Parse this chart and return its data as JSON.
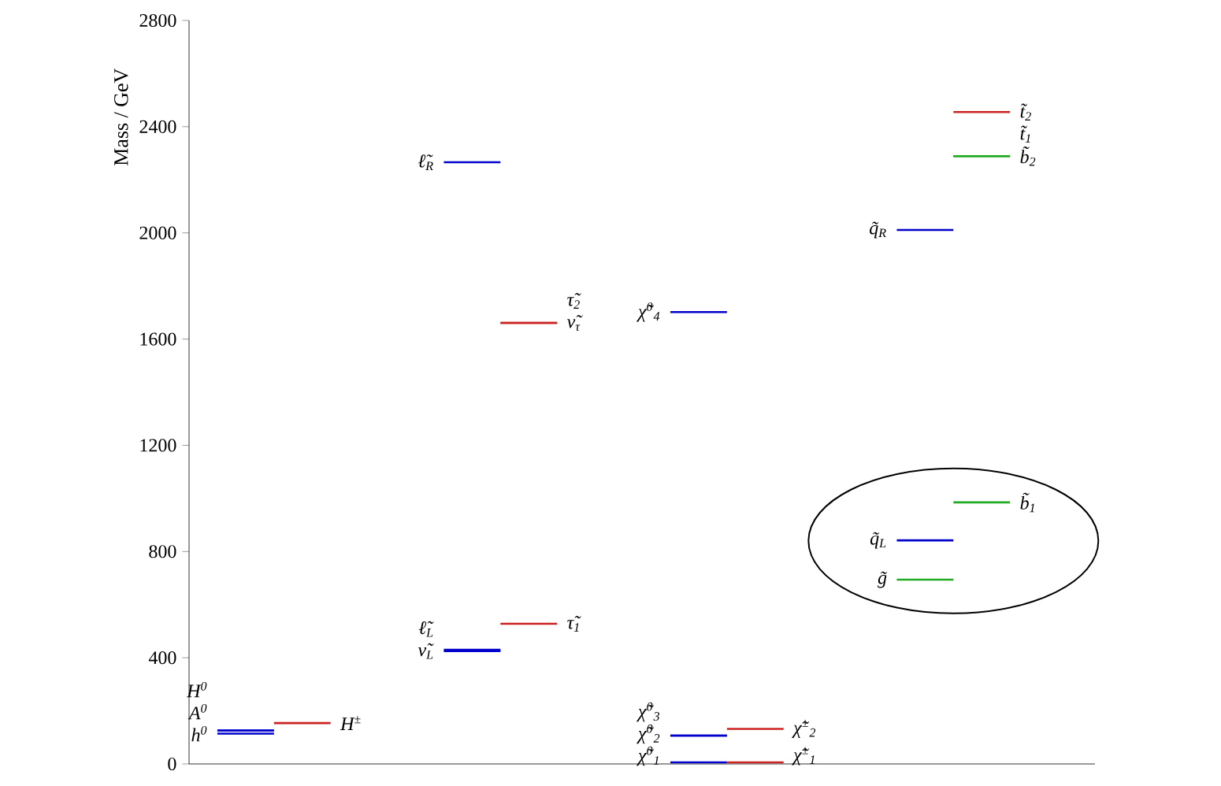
{
  "chart_data": {
    "type": "line",
    "ylabel": "Mass / GeV",
    "categories": [
      null,
      null,
      null,
      null,
      null,
      null,
      null,
      null,
      null,
      null,
      null,
      null,
      null,
      null,
      null,
      null
    ],
    "ylim": [
      0,
      2800
    ],
    "yticks": [
      0,
      400,
      800,
      1200,
      1600,
      2000,
      2400,
      2800
    ],
    "tick_labels": "y",
    "grid": false,
    "series": [
      {
        "name": "H$^{0}$",
        "color": "#0000cc",
        "values": [
          126,
          126,
          null,
          null,
          null,
          null,
          null,
          null,
          null,
          null,
          null,
          null,
          null,
          null,
          null,
          null
        ]
      },
      {
        "name": "A$^{0}$",
        "color": "#0000cc",
        "values": [
          126,
          126,
          null,
          null,
          null,
          null,
          null,
          null,
          null,
          null,
          null,
          null,
          null,
          null,
          null,
          null
        ]
      },
      {
        "name": "h$^{0}$",
        "color": "#0000cc",
        "values": [
          114,
          114,
          null,
          null,
          null,
          null,
          null,
          null,
          null,
          null,
          null,
          null,
          null,
          null,
          null,
          null
        ]
      },
      {
        "name": "H$^{±}$",
        "color": "#cc2222",
        "values": [
          null,
          154,
          154,
          null,
          null,
          null,
          null,
          null,
          null,
          null,
          null,
          null,
          null,
          null,
          null,
          null
        ]
      },
      {
        "name": "ℓ̃$_{R}$",
        "color": "#0000cc",
        "values": [
          null,
          null,
          null,
          null,
          2266,
          2266,
          null,
          null,
          null,
          null,
          null,
          null,
          null,
          null,
          null,
          null
        ]
      },
      {
        "name": "ℓ̃$_{L}$",
        "color": "#0000cc",
        "values": [
          null,
          null,
          null,
          null,
          430,
          430,
          null,
          null,
          null,
          null,
          null,
          null,
          null,
          null,
          null,
          null
        ]
      },
      {
        "name": "ν̃$_{L}$",
        "color": "#0000cc",
        "values": [
          null,
          null,
          null,
          null,
          425,
          425,
          null,
          null,
          null,
          null,
          null,
          null,
          null,
          null,
          null,
          null
        ]
      },
      {
        "name": "τ̃$_{2}$",
        "color": "#cc2222",
        "values": [
          null,
          null,
          null,
          null,
          null,
          1661,
          1661,
          null,
          null,
          null,
          null,
          null,
          null,
          null,
          null,
          null
        ]
      },
      {
        "name": "ν̃$_{τ}$",
        "color": "#cc2222",
        "values": [
          null,
          null,
          null,
          null,
          null,
          1661,
          1661,
          null,
          null,
          null,
          null,
          null,
          null,
          null,
          null,
          null
        ]
      },
      {
        "name": "τ̃$_{1}$",
        "color": "#cc2222",
        "values": [
          null,
          null,
          null,
          null,
          null,
          528,
          528,
          null,
          null,
          null,
          null,
          null,
          null,
          null,
          null,
          null
        ]
      },
      {
        "name": "χ̃$^{0}$$_{4}$",
        "color": "#0000cc",
        "values": [
          null,
          null,
          null,
          null,
          null,
          null,
          null,
          null,
          1702,
          1702,
          null,
          null,
          null,
          null,
          null,
          null
        ]
      },
      {
        "name": "χ̃$^{0}$$_{3}$",
        "color": "#0000cc",
        "values": [
          null,
          null,
          null,
          null,
          null,
          null,
          null,
          null,
          107,
          107,
          null,
          null,
          null,
          null,
          null,
          null
        ]
      },
      {
        "name": "χ̃$^{0}$$_{2}$",
        "color": "#0000cc",
        "values": [
          null,
          null,
          null,
          null,
          null,
          null,
          null,
          null,
          107,
          107,
          null,
          null,
          null,
          null,
          null,
          null
        ]
      },
      {
        "name": "χ̃$^{0}$$_{1}$",
        "color": "#0000cc",
        "values": [
          null,
          null,
          null,
          null,
          null,
          null,
          null,
          null,
          6,
          6,
          null,
          null,
          null,
          null,
          null,
          null
        ]
      },
      {
        "name": "χ̃$^{±}$$_{2}$",
        "color": "#cc2222",
        "values": [
          null,
          null,
          null,
          null,
          null,
          null,
          null,
          null,
          null,
          132,
          132,
          null,
          null,
          null,
          null,
          null
        ]
      },
      {
        "name": "χ̃$^{±}$$_{1}$",
        "color": "#cc2222",
        "values": [
          null,
          null,
          null,
          null,
          null,
          null,
          null,
          null,
          null,
          6,
          6,
          null,
          null,
          null,
          null,
          null
        ]
      },
      {
        "name": "q̃$_{R}$",
        "color": "#0000cc",
        "values": [
          null,
          null,
          null,
          null,
          null,
          null,
          null,
          null,
          null,
          null,
          null,
          null,
          2011,
          2011,
          null,
          null
        ]
      },
      {
        "name": "q̃$_{L}$",
        "color": "#0000cc",
        "values": [
          null,
          null,
          null,
          null,
          null,
          null,
          null,
          null,
          null,
          null,
          null,
          null,
          842,
          842,
          null,
          null
        ]
      },
      {
        "name": "g̃",
        "color": "#22aa22",
        "values": [
          null,
          null,
          null,
          null,
          null,
          null,
          null,
          null,
          null,
          null,
          null,
          null,
          694,
          694,
          null,
          null
        ]
      },
      {
        "name": "t̃$_{2}$",
        "color": "#cc2222",
        "values": [
          null,
          null,
          null,
          null,
          null,
          null,
          null,
          null,
          null,
          null,
          null,
          null,
          null,
          2455,
          2455,
          null
        ]
      },
      {
        "name": "t̃$_{1}$",
        "color": "#22aa22",
        "values": [
          null,
          null,
          null,
          null,
          null,
          null,
          null,
          null,
          null,
          null,
          null,
          null,
          null,
          2289,
          2289,
          null
        ]
      },
      {
        "name": "b̃$_{2}$",
        "color": "#22aa22",
        "values": [
          null,
          null,
          null,
          null,
          null,
          null,
          null,
          null,
          null,
          null,
          null,
          null,
          null,
          2289,
          2289,
          null
        ]
      },
      {
        "name": "b̃$_{1}$",
        "color": "#22aa22",
        "values": [
          null,
          null,
          null,
          null,
          null,
          null,
          null,
          null,
          null,
          null,
          null,
          null,
          null,
          985,
          985,
          null
        ]
      }
    ]
  }
}
